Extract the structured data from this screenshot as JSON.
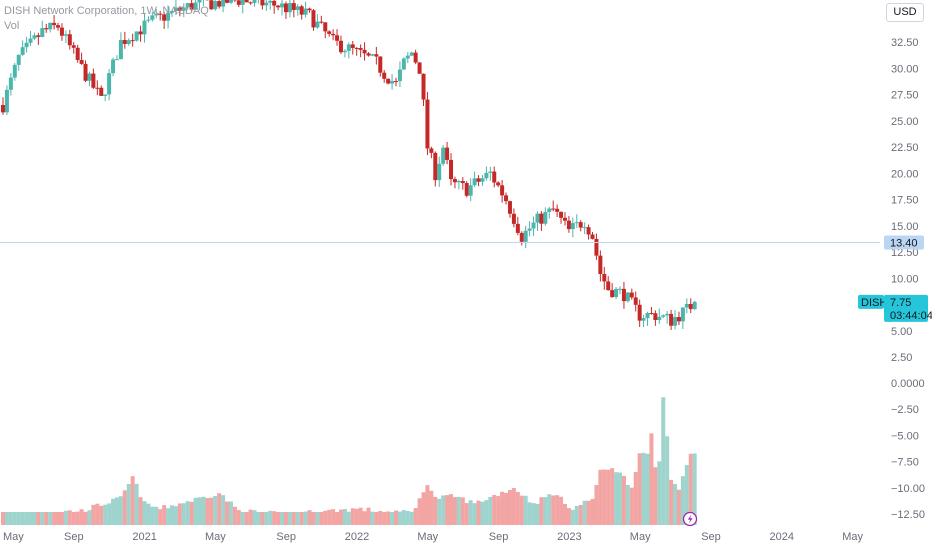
{
  "header": {
    "symbol_line": "DISH Network Corporation, 1W, NASDAQ",
    "volume_label": "Vol",
    "currency_button": "USD"
  },
  "colors": {
    "up": "#4db6ac",
    "down": "#c62828",
    "volume_up": "#9fd4ce",
    "volume_down": "#f2a5a3",
    "price_line": "#bbd6f2",
    "accent": "#26c6da"
  },
  "markers": {
    "horizontal_line": {
      "value": 13.4,
      "label": "13.40"
    },
    "last_price": {
      "symbol": "DISH",
      "value": 7.75,
      "label": "7.75",
      "countdown": "03:44:04"
    },
    "event_icon": "lightning-icon"
  },
  "chart_data": {
    "type": "candlestick",
    "title": "DISH Network Corporation, 1W, NASDAQ",
    "price_axis": {
      "ticks": [
        "32.50",
        "30.00",
        "27.50",
        "25.00",
        "22.50",
        "20.00",
        "17.50",
        "15.00",
        "12.50",
        "10.00",
        "7.50",
        "5.00",
        "2.50"
      ],
      "range": [
        0,
        35
      ]
    },
    "volume_axis": {
      "ticks": [
        "0.0000",
        "−2.50",
        "−5.00",
        "−7.50",
        "−10.00",
        "−12.50"
      ],
      "range": [
        -13.5,
        0.5
      ]
    },
    "time_axis": {
      "ticks": [
        "May",
        "Sep",
        "2021",
        "May",
        "Sep",
        "2022",
        "May",
        "Sep",
        "2023",
        "May",
        "Sep",
        "2024",
        "May"
      ]
    },
    "price_anchors": [
      [
        0,
        26.5
      ],
      [
        4,
        31.0
      ],
      [
        10,
        33.5
      ],
      [
        14,
        34.0
      ],
      [
        20,
        30.0
      ],
      [
        25,
        27.0
      ],
      [
        30,
        32.5
      ],
      [
        38,
        34.5
      ],
      [
        48,
        36.0
      ],
      [
        60,
        36.5
      ],
      [
        70,
        36.0
      ],
      [
        78,
        35.0
      ],
      [
        84,
        32.5
      ],
      [
        90,
        31.5
      ],
      [
        95,
        30.5
      ],
      [
        97,
        29.5
      ],
      [
        100,
        28.5
      ],
      [
        102,
        30.5
      ],
      [
        104,
        31.5
      ],
      [
        106,
        30.0
      ],
      [
        107,
        26.5
      ],
      [
        108,
        22.5
      ],
      [
        110,
        20.0
      ],
      [
        112,
        22.5
      ],
      [
        114,
        19.0
      ],
      [
        118,
        18.5
      ],
      [
        122,
        19.5
      ],
      [
        124,
        20.0
      ],
      [
        128,
        17.5
      ],
      [
        132,
        14.0
      ],
      [
        136,
        15.5
      ],
      [
        140,
        16.5
      ],
      [
        144,
        14.5
      ],
      [
        148,
        15.5
      ],
      [
        150,
        14.0
      ],
      [
        152,
        10.5
      ],
      [
        154,
        9.0
      ],
      [
        158,
        8.5
      ],
      [
        162,
        6.5
      ],
      [
        166,
        6.5
      ],
      [
        170,
        6.0
      ],
      [
        174,
        7.0
      ],
      [
        176,
        7.75
      ]
    ],
    "volume_anchors": [
      [
        0,
        -12.5
      ],
      [
        20,
        -12.2
      ],
      [
        30,
        -11.0
      ],
      [
        33,
        -9.0
      ],
      [
        36,
        -11.5
      ],
      [
        40,
        -12.0
      ],
      [
        50,
        -11.0
      ],
      [
        55,
        -10.5
      ],
      [
        60,
        -12.2
      ],
      [
        70,
        -12.5
      ],
      [
        80,
        -12.3
      ],
      [
        90,
        -12.0
      ],
      [
        100,
        -12.4
      ],
      [
        105,
        -12.0
      ],
      [
        108,
        -9.5
      ],
      [
        110,
        -11.0
      ],
      [
        115,
        -10.8
      ],
      [
        120,
        -11.5
      ],
      [
        130,
        -10.0
      ],
      [
        135,
        -11.5
      ],
      [
        140,
        -10.5
      ],
      [
        145,
        -12.0
      ],
      [
        150,
        -11.0
      ],
      [
        152,
        -8.5
      ],
      [
        155,
        -8.0
      ],
      [
        158,
        -9.0
      ],
      [
        160,
        -10.0
      ],
      [
        162,
        -6.5
      ],
      [
        164,
        -7.0
      ],
      [
        165,
        -5.0
      ],
      [
        166,
        -8.0
      ],
      [
        167,
        -7.5
      ],
      [
        168,
        -1.2
      ],
      [
        170,
        -9.0
      ],
      [
        172,
        -10.0
      ],
      [
        174,
        -8.0
      ],
      [
        175,
        -6.5
      ]
    ]
  }
}
